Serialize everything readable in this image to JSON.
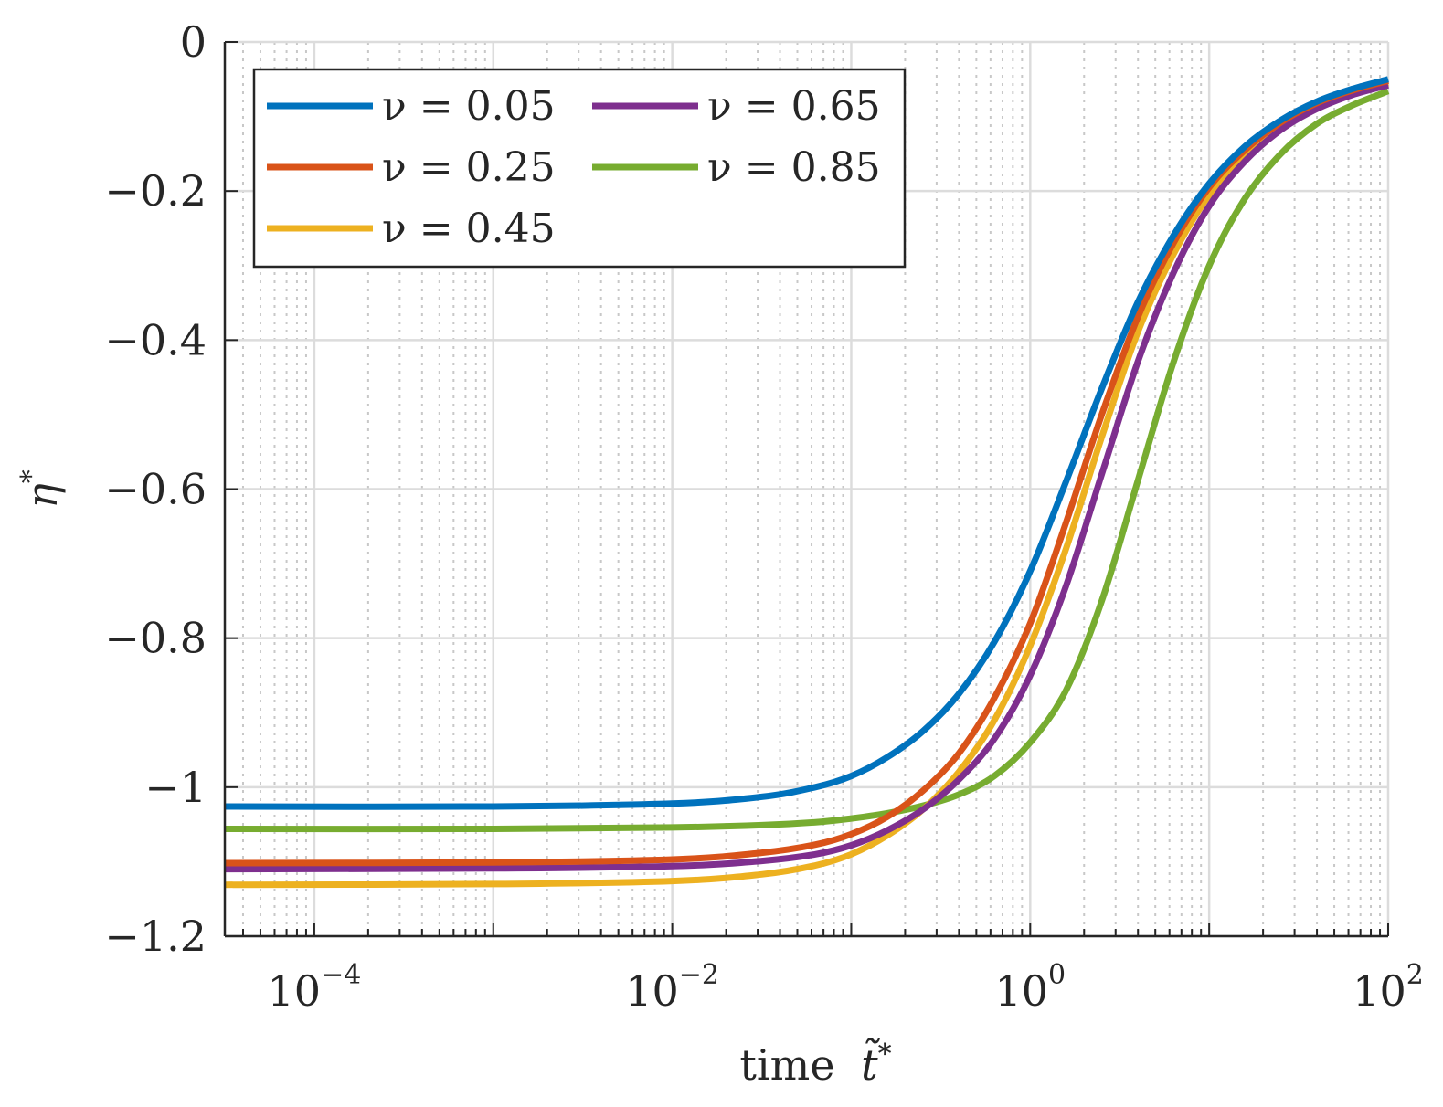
{
  "chart_data": {
    "type": "line",
    "xlabel_text": "time",
    "xlabel_symbol": "t̃",
    "xlabel_sup": "*",
    "ylabel_symbol": "η",
    "ylabel_sup": "*",
    "xscale": "log",
    "xlim_exp": [
      -4.5,
      2
    ],
    "ylim": [
      -1.2,
      0
    ],
    "grid": true,
    "minor_grid": true,
    "legend_position": "top-left",
    "y_ticks": [
      {
        "value": 0,
        "label": "0"
      },
      {
        "value": -0.2,
        "label": "−0.2"
      },
      {
        "value": -0.4,
        "label": "−0.4"
      },
      {
        "value": -0.6,
        "label": "−0.6"
      },
      {
        "value": -0.8,
        "label": "−0.8"
      },
      {
        "value": -1.0,
        "label": "−1"
      },
      {
        "value": -1.2,
        "label": "−1.2"
      }
    ],
    "x_ticks": [
      {
        "exp": -4,
        "base": "10",
        "sup": "−4"
      },
      {
        "exp": -2,
        "base": "10",
        "sup": "−2"
      },
      {
        "exp": 0,
        "base": "10",
        "sup": "0"
      },
      {
        "exp": 2,
        "base": "10",
        "sup": "2"
      }
    ],
    "series": [
      {
        "name": "ν = 0.05",
        "color": "#0072BD",
        "x": [
          -4.5,
          -3.0,
          -2.0,
          -1.5,
          -1.2,
          -1.0,
          -0.8,
          -0.6,
          -0.4,
          -0.2,
          0.0,
          0.2,
          0.4,
          0.6,
          0.8,
          1.0,
          1.2,
          1.4,
          1.6,
          1.8,
          2.0
        ],
        "y": [
          -1.026,
          -1.026,
          -1.022,
          -1.013,
          -1.0,
          -0.985,
          -0.96,
          -0.925,
          -0.875,
          -0.805,
          -0.71,
          -0.59,
          -0.465,
          -0.35,
          -0.26,
          -0.19,
          -0.14,
          -0.105,
          -0.08,
          -0.063,
          -0.05
        ]
      },
      {
        "name": "ν = 0.25",
        "color": "#D95319",
        "x": [
          -4.5,
          -3.0,
          -2.0,
          -1.5,
          -1.2,
          -1.0,
          -0.8,
          -0.6,
          -0.4,
          -0.2,
          0.0,
          0.2,
          0.4,
          0.6,
          0.8,
          1.0,
          1.2,
          1.4,
          1.6,
          1.8,
          2.0
        ],
        "y": [
          -1.102,
          -1.101,
          -1.097,
          -1.088,
          -1.077,
          -1.063,
          -1.04,
          -1.005,
          -0.955,
          -0.88,
          -0.78,
          -0.645,
          -0.5,
          -0.37,
          -0.27,
          -0.195,
          -0.145,
          -0.108,
          -0.082,
          -0.065,
          -0.052
        ]
      },
      {
        "name": "ν = 0.45",
        "color": "#EDB120",
        "x": [
          -4.5,
          -3.0,
          -2.0,
          -1.5,
          -1.2,
          -1.0,
          -0.8,
          -0.6,
          -0.4,
          -0.2,
          0.0,
          0.2,
          0.4,
          0.6,
          0.8,
          1.0,
          1.2,
          1.4,
          1.6,
          1.8,
          2.0
        ],
        "y": [
          -1.131,
          -1.13,
          -1.126,
          -1.117,
          -1.105,
          -1.09,
          -1.065,
          -1.03,
          -0.98,
          -0.91,
          -0.81,
          -0.68,
          -0.53,
          -0.39,
          -0.285,
          -0.205,
          -0.15,
          -0.113,
          -0.086,
          -0.068,
          -0.055
        ]
      },
      {
        "name": "ν = 0.65",
        "color": "#7E2F8E",
        "x": [
          -4.5,
          -3.0,
          -2.0,
          -1.5,
          -1.2,
          -1.0,
          -0.8,
          -0.6,
          -0.4,
          -0.2,
          0.0,
          0.2,
          0.4,
          0.6,
          0.8,
          1.0,
          1.2,
          1.4,
          1.6,
          1.8,
          2.0
        ],
        "y": [
          -1.11,
          -1.109,
          -1.106,
          -1.099,
          -1.09,
          -1.078,
          -1.058,
          -1.03,
          -0.99,
          -0.935,
          -0.85,
          -0.73,
          -0.58,
          -0.43,
          -0.31,
          -0.22,
          -0.16,
          -0.118,
          -0.09,
          -0.071,
          -0.058
        ]
      },
      {
        "name": "ν = 0.85",
        "color": "#77AC30",
        "x": [
          -4.5,
          -3.0,
          -2.0,
          -1.5,
          -1.2,
          -1.0,
          -0.8,
          -0.6,
          -0.4,
          -0.2,
          0.0,
          0.2,
          0.4,
          0.6,
          0.8,
          1.0,
          1.2,
          1.4,
          1.6,
          1.8,
          2.0
        ],
        "y": [
          -1.056,
          -1.056,
          -1.054,
          -1.051,
          -1.047,
          -1.042,
          -1.035,
          -1.025,
          -1.01,
          -0.985,
          -0.94,
          -0.87,
          -0.75,
          -0.59,
          -0.43,
          -0.3,
          -0.21,
          -0.15,
          -0.11,
          -0.085,
          -0.066
        ]
      }
    ],
    "legend_order": [
      0,
      3,
      1,
      4,
      2
    ]
  }
}
